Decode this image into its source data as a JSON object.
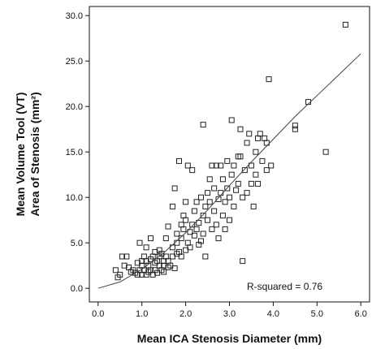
{
  "chart_data": {
    "type": "scatter",
    "xlabel": "Mean ICA Stenosis Diameter (mm)",
    "ylabel_line1": "Mean Volume Tool (VT)",
    "ylabel_line2": "Area of Stenosis (mm²)",
    "annotation": "R-squared = 0.76",
    "xlim": [
      -0.2,
      6.2
    ],
    "ylim": [
      -1.5,
      31.0
    ],
    "xticks": [
      0.0,
      1.0,
      2.0,
      3.0,
      4.0,
      5.0,
      6.0
    ],
    "xtick_labels": [
      "0.0",
      "1.0",
      "2.0",
      "3.0",
      "4.0",
      "5.0",
      "6.0"
    ],
    "yticks": [
      0.0,
      5.0,
      10.0,
      15.0,
      20.0,
      25.0,
      30.0
    ],
    "ytick_labels": [
      "0.0",
      "5.0",
      "10.0",
      "15.0",
      "20.0",
      "25.0",
      "30.0"
    ],
    "grid": false,
    "marker": "open-square",
    "fit_line": {
      "x": [
        0.0,
        0.5,
        1.0,
        1.5,
        2.0,
        2.5,
        3.0,
        3.5,
        4.0,
        4.5,
        5.0,
        5.5,
        6.0
      ],
      "y": [
        0.0,
        0.7,
        2.1,
        3.9,
        6.1,
        8.6,
        11.3,
        13.9,
        16.4,
        18.9,
        21.2,
        23.5,
        25.8
      ]
    },
    "points": [
      [
        0.4,
        2.0
      ],
      [
        0.45,
        1.2
      ],
      [
        0.5,
        1.5
      ],
      [
        0.55,
        3.5
      ],
      [
        0.6,
        2.5
      ],
      [
        0.65,
        3.5
      ],
      [
        0.7,
        2.3
      ],
      [
        0.75,
        1.8
      ],
      [
        0.8,
        2.0
      ],
      [
        0.85,
        1.7
      ],
      [
        0.9,
        2.8
      ],
      [
        0.9,
        1.5
      ],
      [
        0.95,
        5.0
      ],
      [
        0.95,
        2.0
      ],
      [
        1.0,
        3.0
      ],
      [
        1.0,
        1.5
      ],
      [
        1.0,
        2.5
      ],
      [
        1.05,
        3.5
      ],
      [
        1.05,
        2.0
      ],
      [
        1.1,
        4.5
      ],
      [
        1.1,
        1.5
      ],
      [
        1.1,
        3.0
      ],
      [
        1.15,
        2.5
      ],
      [
        1.15,
        1.8
      ],
      [
        1.2,
        3.2
      ],
      [
        1.2,
        2.0
      ],
      [
        1.2,
        5.5
      ],
      [
        1.25,
        3.5
      ],
      [
        1.25,
        1.5
      ],
      [
        1.3,
        4.0
      ],
      [
        1.3,
        2.8
      ],
      [
        1.3,
        2.0
      ],
      [
        1.35,
        3.0
      ],
      [
        1.35,
        1.7
      ],
      [
        1.4,
        3.5
      ],
      [
        1.4,
        4.2
      ],
      [
        1.4,
        2.5
      ],
      [
        1.45,
        3.8
      ],
      [
        1.45,
        2.0
      ],
      [
        1.5,
        3.0
      ],
      [
        1.5,
        2.5
      ],
      [
        1.5,
        1.8
      ],
      [
        1.55,
        3.5
      ],
      [
        1.55,
        5.5
      ],
      [
        1.6,
        3.0
      ],
      [
        1.6,
        6.8
      ],
      [
        1.6,
        2.3
      ],
      [
        1.65,
        2.5
      ],
      [
        1.7,
        9.0
      ],
      [
        1.7,
        4.5
      ],
      [
        1.7,
        3.5
      ],
      [
        1.75,
        11.0
      ],
      [
        1.75,
        2.2
      ],
      [
        1.8,
        6.0
      ],
      [
        1.8,
        3.8
      ],
      [
        1.8,
        5.0
      ],
      [
        1.85,
        14.0
      ],
      [
        1.85,
        4.0
      ],
      [
        1.9,
        7.0
      ],
      [
        1.9,
        5.5
      ],
      [
        1.9,
        3.5
      ],
      [
        1.95,
        8.0
      ],
      [
        1.95,
        6.5
      ],
      [
        2.0,
        4.2
      ],
      [
        2.0,
        9.5
      ],
      [
        2.0,
        7.5
      ],
      [
        2.05,
        13.5
      ],
      [
        2.05,
        5.0
      ],
      [
        2.1,
        4.5
      ],
      [
        2.1,
        6.2
      ],
      [
        2.15,
        13.0
      ],
      [
        2.15,
        7.0
      ],
      [
        2.2,
        5.8
      ],
      [
        2.2,
        8.5
      ],
      [
        2.25,
        6.5
      ],
      [
        2.25,
        9.5
      ],
      [
        2.3,
        4.8
      ],
      [
        2.3,
        7.2
      ],
      [
        2.35,
        10.0
      ],
      [
        2.35,
        5.2
      ],
      [
        2.4,
        18.0
      ],
      [
        2.4,
        8.0
      ],
      [
        2.4,
        6.0
      ],
      [
        2.45,
        9.0
      ],
      [
        2.45,
        3.5
      ],
      [
        2.5,
        10.5
      ],
      [
        2.5,
        7.5
      ],
      [
        2.55,
        12.0
      ],
      [
        2.55,
        9.5
      ],
      [
        2.6,
        13.5
      ],
      [
        2.6,
        6.5
      ],
      [
        2.65,
        11.0
      ],
      [
        2.65,
        8.5
      ],
      [
        2.7,
        13.5
      ],
      [
        2.7,
        7.0
      ],
      [
        2.75,
        9.8
      ],
      [
        2.75,
        5.5
      ],
      [
        2.8,
        13.5
      ],
      [
        2.8,
        10.5
      ],
      [
        2.85,
        8.0
      ],
      [
        2.85,
        12.0
      ],
      [
        2.9,
        9.5
      ],
      [
        2.9,
        6.5
      ],
      [
        2.95,
        14.0
      ],
      [
        2.95,
        11.0
      ],
      [
        3.0,
        10.0
      ],
      [
        3.0,
        7.5
      ],
      [
        3.05,
        18.5
      ],
      [
        3.05,
        12.5
      ],
      [
        3.1,
        13.5
      ],
      [
        3.1,
        9.0
      ],
      [
        3.15,
        10.8
      ],
      [
        3.2,
        14.5
      ],
      [
        3.2,
        11.5
      ],
      [
        3.25,
        17.5
      ],
      [
        3.25,
        14.5
      ],
      [
        3.3,
        3.0
      ],
      [
        3.3,
        10.0
      ],
      [
        3.35,
        13.0
      ],
      [
        3.4,
        16.0
      ],
      [
        3.4,
        10.5
      ],
      [
        3.45,
        17.0
      ],
      [
        3.5,
        13.5
      ],
      [
        3.5,
        11.5
      ],
      [
        3.55,
        9.0
      ],
      [
        3.6,
        15.0
      ],
      [
        3.6,
        12.5
      ],
      [
        3.65,
        16.5
      ],
      [
        3.65,
        11.5
      ],
      [
        3.7,
        17.0
      ],
      [
        3.75,
        14.0
      ],
      [
        3.8,
        16.5
      ],
      [
        3.85,
        16.0
      ],
      [
        3.85,
        13.0
      ],
      [
        3.9,
        23.0
      ],
      [
        3.95,
        13.5
      ],
      [
        4.5,
        17.5
      ],
      [
        4.5,
        17.9
      ],
      [
        4.8,
        20.5
      ],
      [
        5.2,
        15.0
      ],
      [
        5.65,
        29.0
      ]
    ]
  }
}
